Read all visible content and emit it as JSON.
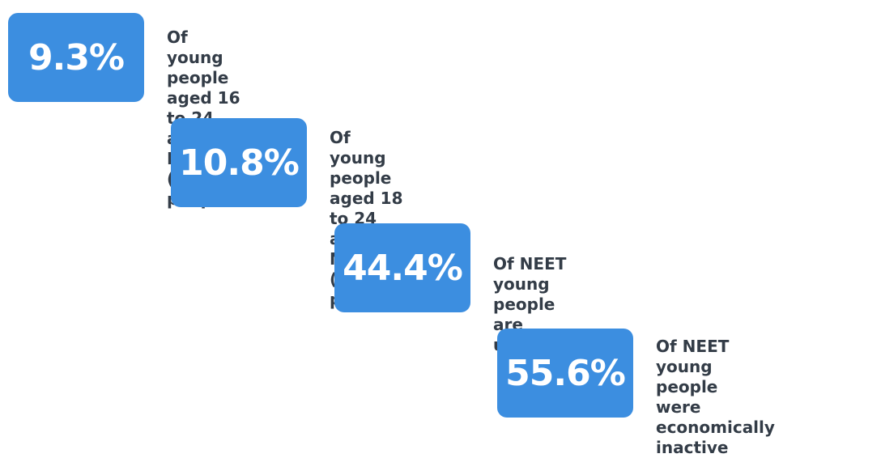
{
  "colors": {
    "box_fill": "#3c8ee0",
    "box_text": "#ffffff",
    "body_text": "#333c47"
  },
  "stats": [
    {
      "value": "9.3%",
      "description": "Of young people aged 16\nto 24 are NEET (631,000\npeople)"
    },
    {
      "value": "10.8%",
      "description": "Of young people aged 18\nto 24 are NEET (577,000\npeople)"
    },
    {
      "value": "44.4%",
      "description": "Of NEET young people\nare unemployed"
    },
    {
      "value": "55.6%",
      "description": "Of NEET young people\nwere economically\ninactive"
    }
  ]
}
